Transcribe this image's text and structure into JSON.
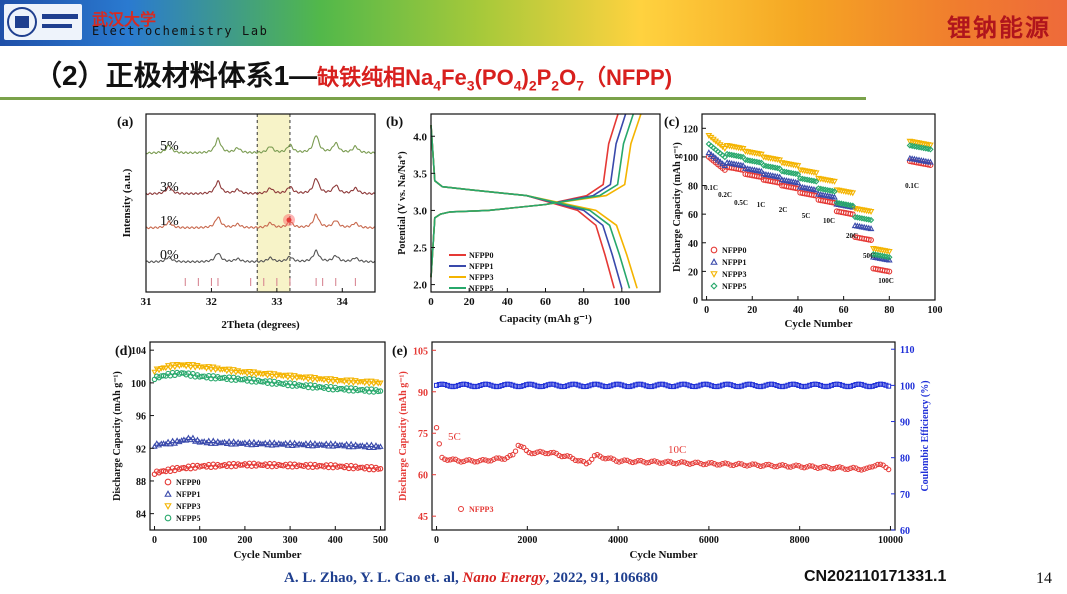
{
  "header": {
    "university": "武汉大学",
    "lab": "Electrochemistry Lab",
    "brand": "锂钠能源"
  },
  "title": {
    "prefix": "（2）正极材料体系1—",
    "highlight": "缺铁纯相Na",
    "s1": "4",
    "t1": "Fe",
    "s2": "3",
    "t2": "(PO",
    "s3": "4",
    "t3": ")",
    "s4": "2",
    "t4": "P",
    "s5": "2",
    "t5": "O",
    "s6": "7",
    "tail": "（NFPP)"
  },
  "footer": {
    "authors": "A. L. Zhao, Y. L. Cao et. al,",
    "journal": "Nano Energy",
    "ref": ", 2022, 91, 106680",
    "patent": "CN202110171331.1",
    "page": "14"
  },
  "chart_data": [
    {
      "panel": "(a)",
      "type": "line",
      "xlabel": "2Theta (degrees)",
      "ylabel": "Intensity (a.u.)",
      "xlim": [
        31,
        34.5
      ],
      "xticks": [
        31,
        32,
        33,
        34
      ],
      "series": [
        {
          "name": "0%",
          "color": "#555555",
          "offset": 0
        },
        {
          "name": "1%",
          "color": "#c8694e",
          "offset": 1
        },
        {
          "name": "3%",
          "color": "#8e3a3a",
          "offset": 2
        },
        {
          "name": "5%",
          "color": "#7b9c52",
          "offset": 3.2
        }
      ],
      "peaks_2theta": [
        31.35,
        32.1,
        32.4,
        32.9,
        33.2,
        33.6,
        33.9,
        34.2
      ],
      "highlight_range": [
        32.7,
        33.2
      ],
      "reference_ticks": [
        31.6,
        31.8,
        32.0,
        32.1,
        32.6,
        32.8,
        33.0,
        33.2,
        33.6,
        33.7,
        33.9,
        34.2
      ]
    },
    {
      "panel": "(b)",
      "type": "line",
      "xlabel": "Capacity (mAh g⁻¹)",
      "ylabel": "Potential (V vs. Na/Na⁺)",
      "xlim": [
        0,
        120
      ],
      "ylim": [
        1.9,
        4.3
      ],
      "xticks": [
        0,
        20,
        40,
        60,
        80,
        100
      ],
      "yticks": [
        2.0,
        2.5,
        3.0,
        3.5,
        4.0
      ],
      "series": [
        {
          "name": "NFPP0",
          "color": "#e53935",
          "capacity": 96
        },
        {
          "name": "NFPP1",
          "color": "#3949ab",
          "capacity": 100
        },
        {
          "name": "NFPP3",
          "color": "#f4b400",
          "capacity": 108
        },
        {
          "name": "NFPP5",
          "color": "#27a86b",
          "capacity": 104
        }
      ]
    },
    {
      "panel": "(c)",
      "type": "scatter",
      "xlabel": "Cycle Number",
      "ylabel": "Discharge Capacity (mAh g⁻¹)",
      "xlim": [
        -2,
        100
      ],
      "ylim": [
        0,
        130
      ],
      "xticks": [
        0,
        20,
        40,
        60,
        80,
        100
      ],
      "yticks": [
        0,
        20,
        40,
        60,
        80,
        100,
        120
      ],
      "rate_labels": [
        "0.1C",
        "0.2C",
        "0.5C",
        "1C",
        "2C",
        "5C",
        "10C",
        "20C",
        "50C",
        "100C",
        "0.1C"
      ],
      "series": [
        {
          "name": "NFPP0",
          "color": "#e53935",
          "marker": "circle",
          "values": [
            97,
            93,
            88,
            84,
            80,
            75,
            70,
            62,
            44,
            22,
            97
          ]
        },
        {
          "name": "NFPP1",
          "color": "#3949ab",
          "marker": "triangle",
          "values": [
            100,
            96,
            92,
            88,
            84,
            79,
            74,
            67,
            52,
            30,
            99
          ]
        },
        {
          "name": "NFPP3",
          "color": "#f4b400",
          "marker": "triangle-down",
          "values": [
            112,
            108,
            104,
            100,
            96,
            91,
            85,
            77,
            64,
            36,
            111
          ]
        },
        {
          "name": "NFPP5",
          "color": "#27a86b",
          "marker": "diamond",
          "values": [
            106,
            102,
            98,
            94,
            90,
            85,
            78,
            68,
            58,
            32,
            108
          ]
        }
      ]
    },
    {
      "panel": "(d)",
      "type": "scatter",
      "xlabel": "Cycle Number",
      "ylabel": "Discharge Capacity (mAh g⁻¹)",
      "xlim": [
        -10,
        510
      ],
      "ylim": [
        82,
        105
      ],
      "xticks": [
        0,
        100,
        200,
        300,
        400,
        500
      ],
      "yticks": [
        84,
        88,
        92,
        96,
        100,
        104
      ],
      "series": [
        {
          "name": "NFPP0",
          "color": "#e53935",
          "marker": "circle",
          "x": [
            0,
            50,
            100,
            200,
            300,
            400,
            500
          ],
          "y": [
            89.0,
            89.5,
            89.8,
            90.0,
            89.9,
            89.8,
            89.5
          ]
        },
        {
          "name": "NFPP1",
          "color": "#3949ab",
          "marker": "triangle",
          "x": [
            0,
            50,
            80,
            100,
            200,
            300,
            400,
            500
          ],
          "y": [
            92.4,
            92.8,
            93.2,
            92.8,
            92.6,
            92.5,
            92.4,
            92.2
          ]
        },
        {
          "name": "NFPP3",
          "color": "#f4b400",
          "marker": "triangle-down",
          "x": [
            0,
            30,
            60,
            100,
            200,
            300,
            400,
            500
          ],
          "y": [
            101.5,
            102.0,
            102.2,
            102.0,
            101.3,
            100.8,
            100.3,
            100.0
          ]
        },
        {
          "name": "NFPP5",
          "color": "#27a86b",
          "marker": "circle",
          "x": [
            0,
            30,
            60,
            100,
            200,
            300,
            400,
            500
          ],
          "y": [
            100.6,
            101.0,
            101.2,
            100.8,
            100.4,
            99.8,
            99.3,
            99.0
          ]
        }
      ]
    },
    {
      "panel": "(e)",
      "type": "scatter",
      "xlabel": "Cycle Number",
      "ylabel": "Discharge Capacity (mAh g⁻¹)",
      "y2label": "Coulombic Efficiency (%)",
      "xlim": [
        -100,
        10100
      ],
      "ylim": [
        40,
        108
      ],
      "y2lim": [
        60,
        112
      ],
      "xticks": [
        0,
        2000,
        4000,
        6000,
        8000,
        10000
      ],
      "yticks": [
        45,
        60,
        75,
        90,
        105
      ],
      "y2ticks": [
        60,
        70,
        80,
        90,
        100,
        110
      ],
      "legend": "NFPP3",
      "rate_labels": [
        "5C",
        "10C"
      ],
      "capacity": {
        "color": "#e53935",
        "x": [
          0,
          50,
          100,
          500,
          1000,
          1500,
          1700,
          1800,
          1900,
          2000,
          2500,
          3000,
          3300,
          3500,
          4000,
          6000,
          8000,
          9500,
          9700,
          10000
        ],
        "y": [
          77,
          72,
          66,
          65,
          65,
          66,
          67,
          71,
          70,
          68,
          68,
          66,
          64,
          67,
          65,
          64,
          63,
          62,
          64,
          62
        ]
      },
      "efficiency": {
        "color": "#1f2fd8",
        "x": [
          0,
          10000
        ],
        "y": [
          100,
          100
        ]
      }
    }
  ]
}
